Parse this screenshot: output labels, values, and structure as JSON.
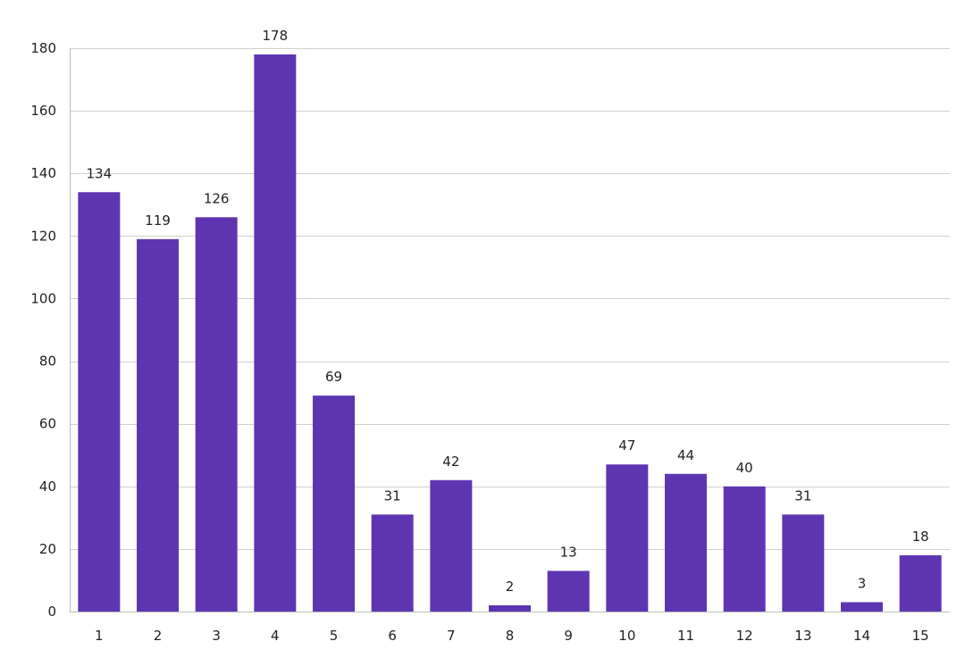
{
  "chart_data": {
    "type": "bar",
    "categories": [
      "1",
      "2",
      "3",
      "4",
      "5",
      "6",
      "7",
      "8",
      "9",
      "10",
      "11",
      "12",
      "13",
      "14",
      "15"
    ],
    "values": [
      134,
      119,
      126,
      178,
      69,
      31,
      42,
      2,
      13,
      47,
      44,
      40,
      31,
      3,
      18
    ],
    "ylim": [
      0,
      180
    ],
    "yticks": [
      0,
      20,
      40,
      60,
      80,
      100,
      120,
      140,
      160,
      180
    ],
    "grid": true,
    "data_labels": true,
    "bar_color": "#5e35b1"
  }
}
